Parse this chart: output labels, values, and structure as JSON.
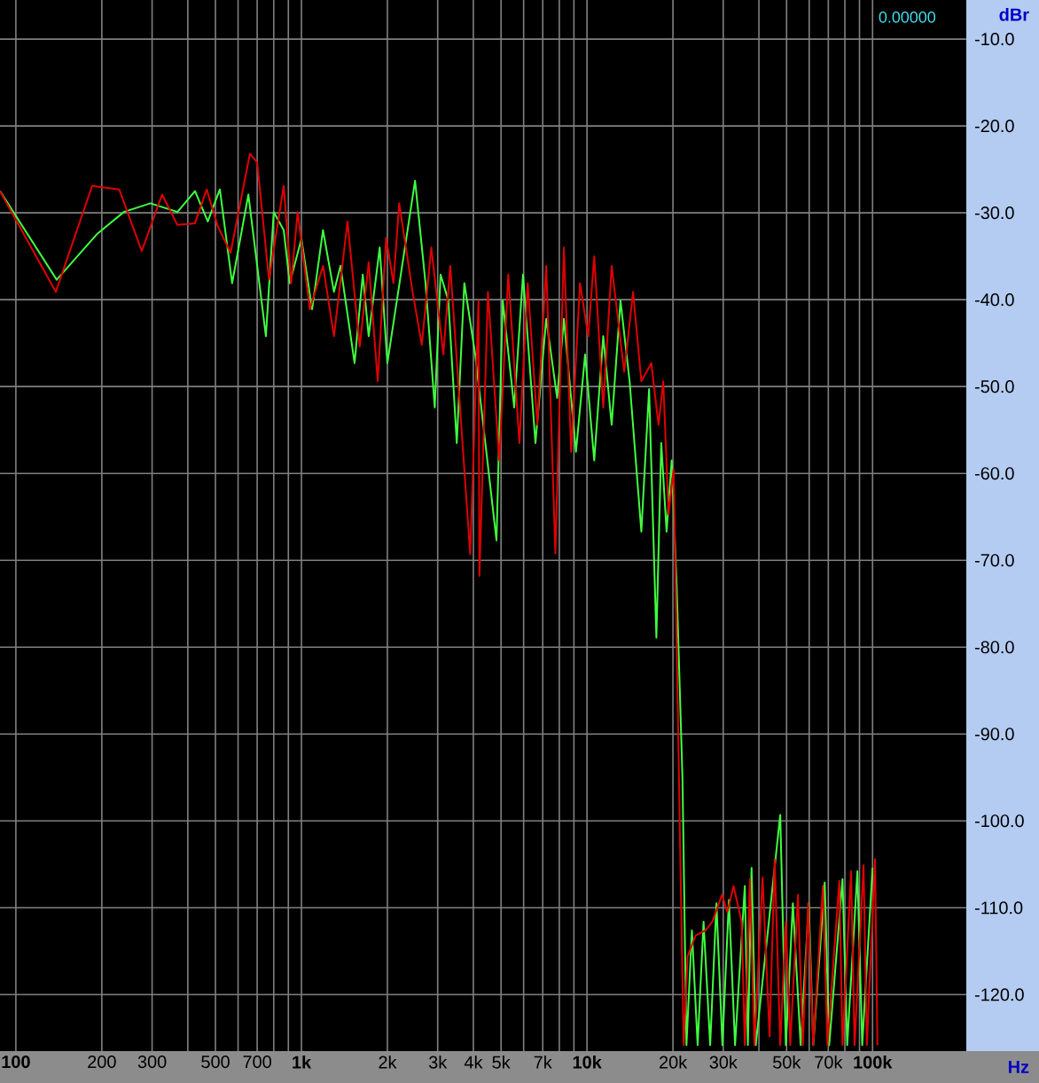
{
  "chart_data": {
    "type": "line",
    "xlabel": "Hz",
    "ylabel": "dBr",
    "log": "x",
    "grid": true,
    "xlim": [
      88,
      213000
    ],
    "ylim": [
      -126.5,
      -5.5
    ],
    "xticks": [
      {
        "value": 100,
        "label": "100"
      },
      200,
      300,
      {
        "value": 400,
        "label": null
      },
      500,
      {
        "value": 600,
        "label": null
      },
      700,
      {
        "value": 800,
        "label": null
      },
      {
        "value": 900,
        "label": null
      },
      {
        "value": 1000,
        "label": "1k"
      },
      {
        "value": 2000,
        "label": "2k"
      },
      {
        "value": 3000,
        "label": "3k"
      },
      {
        "value": 4000,
        "label": "4k"
      },
      {
        "value": 5000,
        "label": "5k"
      },
      {
        "value": 6000,
        "label": null
      },
      {
        "value": 7000,
        "label": "7k"
      },
      {
        "value": 8000,
        "label": null
      },
      {
        "value": 9000,
        "label": null
      },
      {
        "value": 10000,
        "label": "10k"
      },
      {
        "value": 20000,
        "label": "20k"
      },
      {
        "value": 30000,
        "label": "30k"
      },
      {
        "value": 40000,
        "label": null
      },
      {
        "value": 50000,
        "label": "50k"
      },
      {
        "value": 60000,
        "label": null
      },
      {
        "value": 70000,
        "label": "70k"
      },
      {
        "value": 80000,
        "label": null
      },
      {
        "value": 90000,
        "label": null
      },
      {
        "value": 100000,
        "label": "100k"
      }
    ],
    "yticks": [
      {
        "value": -10,
        "label": "-10.0"
      },
      {
        "value": -20,
        "label": "-20.0"
      },
      {
        "value": -30,
        "label": "-30.0"
      },
      {
        "value": -40,
        "label": "-40.0"
      },
      {
        "value": -50,
        "label": "-50.0"
      },
      {
        "value": -60,
        "label": "-60.0"
      },
      {
        "value": -70,
        "label": "-70.0"
      },
      {
        "value": -80,
        "label": "-80.0"
      },
      {
        "value": -90,
        "label": "-90.0"
      },
      {
        "value": -100,
        "label": "-100.0"
      },
      {
        "value": -110,
        "label": "-110.0"
      },
      {
        "value": -120,
        "label": "-120.0"
      }
    ],
    "annotations": [
      "0.00000"
    ],
    "series": [
      {
        "color": "#40ff40",
        "x": [
          88,
          139,
          193,
          239,
          296,
          368,
          424,
          470,
          518,
          572,
          652,
          751,
          800,
          867,
          910,
          1000,
          1090,
          1190,
          1300,
          1370,
          1535,
          1640,
          1720,
          1880,
          2000,
          2500,
          2720,
          2930,
          3070,
          3270,
          3500,
          3720,
          4060,
          4820,
          5070,
          5560,
          5970,
          6600,
          7200,
          7860,
          8300,
          9150,
          9850,
          10600,
          11400,
          12200,
          13100,
          14100,
          15500,
          16500,
          17500,
          18200,
          19000,
          19800,
          20600,
          21600,
          22300,
          23300,
          24400,
          25600,
          27000,
          28400,
          29800,
          31400,
          33000,
          35700,
          36600,
          37700,
          39000,
          47500,
          49700,
          52600,
          56000,
          59800,
          62000,
          68000,
          70500,
          78500,
          81500,
          88500,
          92000,
          100000
        ],
        "values": [
          -27.5,
          -37.7,
          -32.4,
          -29.9,
          -28.9,
          -29.9,
          -27.5,
          -31.0,
          -27.3,
          -38.1,
          -27.9,
          -44.2,
          -29.9,
          -32.0,
          -38.1,
          -33.0,
          -41.1,
          -32.0,
          -39.1,
          -36.1,
          -47.3,
          -37.1,
          -44.2,
          -34.0,
          -47.3,
          -26.3,
          -38.1,
          -52.4,
          -37.1,
          -40.1,
          -56.5,
          -38.1,
          -46.3,
          -67.7,
          -40.1,
          -52.4,
          -37.1,
          -56.5,
          -42.2,
          -51.3,
          -42.2,
          -57.5,
          -46.3,
          -58.5,
          -44.2,
          -54.4,
          -40.1,
          -49.4,
          -66.7,
          -50.3,
          -78.9,
          -56.5,
          -66.7,
          -58.5,
          -72.8,
          -95.2,
          -125.8,
          -112.6,
          -125.8,
          -111.6,
          -125.8,
          -109.5,
          -125.8,
          -109.1,
          -125.8,
          -107.5,
          -125.8,
          -105.4,
          -125.8,
          -99.3,
          -125.8,
          -109.5,
          -125.8,
          -109.5,
          -125.8,
          -107.1,
          -125.8,
          -106.7,
          -125.8,
          -105.8,
          -125.8,
          -105.4
        ]
      },
      {
        "color": "#e00000",
        "x": [
          88,
          138,
          185,
          230,
          276,
          325,
          368,
          424,
          466,
          510,
          565,
          660,
          700,
          770,
          867,
          920,
          970,
          1070,
          1190,
          1300,
          1450,
          1600,
          1720,
          1850,
          1980,
          2100,
          2200,
          2450,
          2640,
          2850,
          3140,
          3320,
          3900,
          4170,
          4200,
          4500,
          4930,
          5300,
          5800,
          6200,
          6700,
          7200,
          7750,
          8300,
          8800,
          9450,
          10100,
          10600,
          11400,
          12200,
          13500,
          14500,
          15500,
          16800,
          17800,
          18500,
          19300,
          20100,
          20600,
          21200,
          21800,
          22500,
          24000,
          26000,
          27500,
          29700,
          31000,
          32600,
          34800,
          35700,
          37200,
          38600,
          41200,
          43600,
          45400,
          47500,
          49700,
          51500,
          54800,
          57000,
          59500,
          62000,
          67000,
          69500,
          76500,
          78500,
          84100,
          86500,
          93000,
          95500,
          102000,
          104000
        ],
        "values": [
          -27.5,
          -39.1,
          -26.9,
          -27.3,
          -34.4,
          -27.9,
          -31.4,
          -31.2,
          -27.3,
          -31.6,
          -34.6,
          -23.2,
          -24.2,
          -37.7,
          -26.9,
          -38.1,
          -29.9,
          -41.1,
          -36.1,
          -44.2,
          -31.0,
          -45.4,
          -35.7,
          -49.4,
          -32.9,
          -38.1,
          -28.9,
          -39.1,
          -45.2,
          -34.0,
          -46.3,
          -36.1,
          -69.3,
          -40.1,
          -71.8,
          -39.1,
          -58.5,
          -37.1,
          -56.5,
          -38.1,
          -54.4,
          -36.1,
          -69.2,
          -34.0,
          -57.5,
          -38.1,
          -44.2,
          -35.0,
          -52.4,
          -36.1,
          -48.3,
          -39.1,
          -49.4,
          -47.3,
          -54.4,
          -49.4,
          -64.7,
          -59.5,
          -78.9,
          -103.4,
          -125.8,
          -115.6,
          -113.2,
          -112.6,
          -111.6,
          -108.5,
          -110.5,
          -107.5,
          -111.6,
          -125.8,
          -106.7,
          -125.8,
          -106.5,
          -124.8,
          -104.4,
          -125.8,
          -111.6,
          -125.8,
          -108.5,
          -125.8,
          -109.5,
          -125.8,
          -107.5,
          -125.8,
          -106.9,
          -125.8,
          -105.8,
          -125.8,
          -105.1,
          -125.8,
          -104.4,
          -125.8
        ]
      }
    ]
  }
}
